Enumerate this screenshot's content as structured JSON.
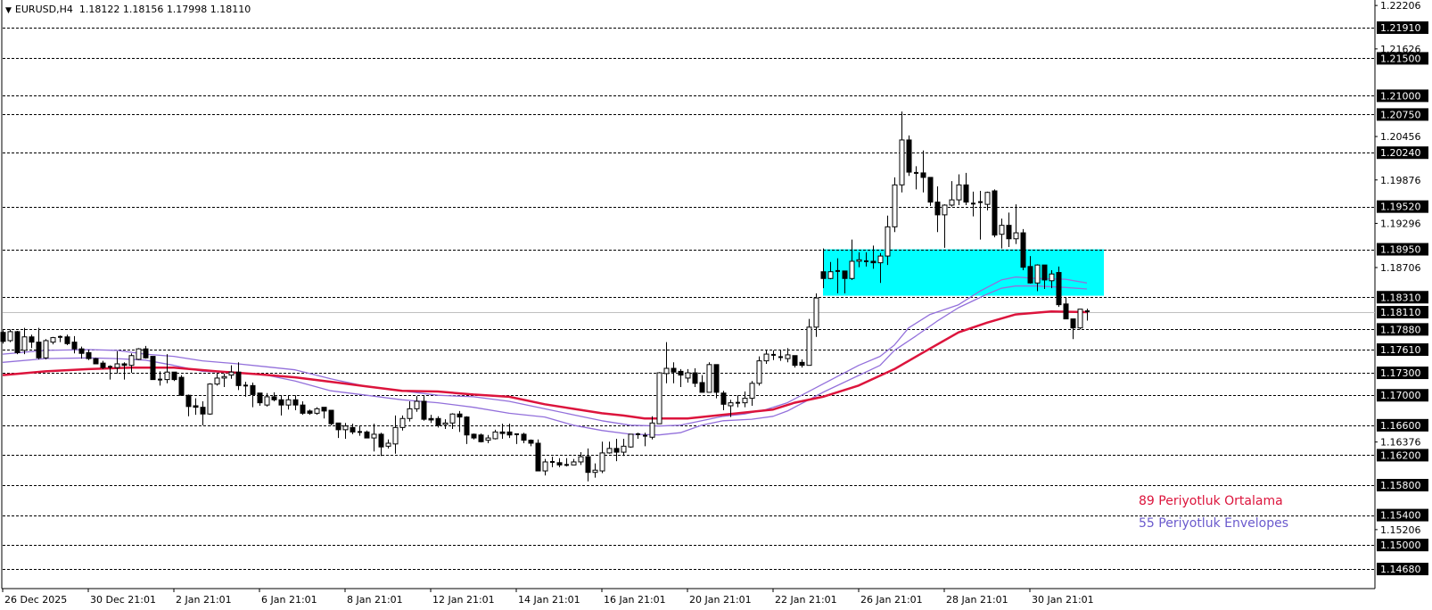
{
  "header": {
    "symbol": "EURUSD,H4",
    "ohlc": "1.18122 1.18156 1.17998 1.18110",
    "menu_icon": "triangle-down-icon"
  },
  "chart_data": {
    "type": "candlestick",
    "symbol": "EURUSD",
    "timeframe": "H4",
    "ylim": [
      1.1461,
      1.2228
    ],
    "grid": false,
    "colors": {
      "bull_body": "#ffffff",
      "bear_body": "#000000",
      "wick": "#000000",
      "ma": "#dc143c",
      "envelope": "#9370db",
      "zone": "#00ffff",
      "bid_line": "#c0c0c0"
    },
    "x_tick_labels": [
      "26 Dec 2025",
      "30 Dec 21:01",
      "2 Jan 21:01",
      "6 Jan 21:01",
      "8 Jan 21:01",
      "12 Jan 21:01",
      "14 Jan 21:01",
      "16 Jan 21:01",
      "20 Jan 21:01",
      "22 Jan 21:01",
      "26 Jan 21:01",
      "28 Jan 21:01",
      "30 Jan 21:01"
    ],
    "x_tick_every_bars": 12,
    "y_tick_labels": [
      "1.22206",
      "1.21626",
      "1.20456",
      "1.19876",
      "1.19296",
      "1.18706",
      "1.16376",
      "1.15206"
    ],
    "levels": [
      "1.21910",
      "1.21500",
      "1.21000",
      "1.20750",
      "1.20240",
      "1.19520",
      "1.18950",
      "1.18310",
      "1.17880",
      "1.17610",
      "1.17300",
      "1.17000",
      "1.16600",
      "1.16200",
      "1.15800",
      "1.15400",
      "1.15000",
      "1.14680"
    ],
    "bid": "1.18110",
    "zone": {
      "top": 1.1895,
      "bottom": 1.1833,
      "from_bar": 115
    },
    "legend": [
      {
        "label": "89 Periyotluk Ortalama",
        "color": "#dc143c"
      },
      {
        "label": "55 Periyotluk Envelopes",
        "color": "#6a5acd"
      }
    ],
    "candles_ohlc": [
      [
        1.1784,
        1.1787,
        1.1769,
        1.1772
      ],
      [
        1.1773,
        1.1788,
        1.1771,
        1.1785
      ],
      [
        1.1785,
        1.1786,
        1.1755,
        1.1757
      ],
      [
        1.176,
        1.179,
        1.1755,
        1.1778
      ],
      [
        1.1778,
        1.1781,
        1.1763,
        1.1771
      ],
      [
        1.1771,
        1.179,
        1.1748,
        1.175
      ],
      [
        1.175,
        1.1775,
        1.1748,
        1.1773
      ],
      [
        1.1771,
        1.1778,
        1.1768,
        1.1777
      ],
      [
        1.1777,
        1.178,
        1.1771,
        1.1778
      ],
      [
        1.1778,
        1.1781,
        1.1767,
        1.1769
      ],
      [
        1.1771,
        1.1779,
        1.1756,
        1.1762
      ],
      [
        1.1762,
        1.1765,
        1.1749,
        1.1756
      ],
      [
        1.1757,
        1.1761,
        1.1747,
        1.1749
      ],
      [
        1.1749,
        1.175,
        1.1742,
        1.1742
      ],
      [
        1.1743,
        1.1746,
        1.1735,
        1.1737
      ],
      [
        1.1738,
        1.174,
        1.1721,
        1.1738
      ],
      [
        1.1737,
        1.1759,
        1.1729,
        1.1742
      ],
      [
        1.1742,
        1.1744,
        1.1721,
        1.174
      ],
      [
        1.174,
        1.1756,
        1.173,
        1.1753
      ],
      [
        1.1748,
        1.1763,
        1.1747,
        1.1762
      ],
      [
        1.1762,
        1.1766,
        1.1749,
        1.175
      ],
      [
        1.1752,
        1.1752,
        1.1721,
        1.1721
      ],
      [
        1.1721,
        1.1732,
        1.1713,
        1.1721
      ],
      [
        1.1721,
        1.1755,
        1.1716,
        1.1731
      ],
      [
        1.1731,
        1.1731,
        1.1719,
        1.1721
      ],
      [
        1.1724,
        1.1727,
        1.17,
        1.17
      ],
      [
        1.17,
        1.1701,
        1.1672,
        1.1685
      ],
      [
        1.1686,
        1.1696,
        1.1674,
        1.1684
      ],
      [
        1.1684,
        1.1692,
        1.166,
        1.1675
      ],
      [
        1.1675,
        1.1716,
        1.1674,
        1.1715
      ],
      [
        1.1715,
        1.173,
        1.1713,
        1.1723
      ],
      [
        1.1723,
        1.1729,
        1.1711,
        1.1725
      ],
      [
        1.1727,
        1.174,
        1.1722,
        1.1731
      ],
      [
        1.1731,
        1.1744,
        1.1707,
        1.1713
      ],
      [
        1.1713,
        1.1718,
        1.1698,
        1.1713
      ],
      [
        1.1713,
        1.1717,
        1.1684,
        1.1701
      ],
      [
        1.1703,
        1.1703,
        1.1686,
        1.169
      ],
      [
        1.1687,
        1.1703,
        1.1685,
        1.1698
      ],
      [
        1.1698,
        1.1704,
        1.1692,
        1.1694
      ],
      [
        1.1694,
        1.17,
        1.1673,
        1.1687
      ],
      [
        1.1687,
        1.17,
        1.1681,
        1.1694
      ],
      [
        1.1694,
        1.17,
        1.168,
        1.1687
      ],
      [
        1.1687,
        1.1692,
        1.1674,
        1.1676
      ],
      [
        1.1679,
        1.1681,
        1.1674,
        1.1676
      ],
      [
        1.1676,
        1.1684,
        1.1674,
        1.1682
      ],
      [
        1.1684,
        1.1684,
        1.1669,
        1.1679
      ],
      [
        1.168,
        1.168,
        1.166,
        1.1662
      ],
      [
        1.1663,
        1.1663,
        1.1643,
        1.1654
      ],
      [
        1.1654,
        1.1663,
        1.1642,
        1.1659
      ],
      [
        1.1657,
        1.1662,
        1.1648,
        1.1651
      ],
      [
        1.1651,
        1.166,
        1.1646,
        1.1651
      ],
      [
        1.1651,
        1.1653,
        1.1643,
        1.1643
      ],
      [
        1.1643,
        1.1662,
        1.1625,
        1.1648
      ],
      [
        1.1648,
        1.165,
        1.1619,
        1.1631
      ],
      [
        1.1632,
        1.1641,
        1.1629,
        1.1636
      ],
      [
        1.1635,
        1.1673,
        1.1622,
        1.1657
      ],
      [
        1.1657,
        1.1673,
        1.1653,
        1.1669
      ],
      [
        1.1669,
        1.1692,
        1.1665,
        1.1682
      ],
      [
        1.1682,
        1.1699,
        1.1678,
        1.1692
      ],
      [
        1.1692,
        1.1699,
        1.1666,
        1.1668
      ],
      [
        1.1669,
        1.1674,
        1.1663,
        1.1667
      ],
      [
        1.1669,
        1.1672,
        1.1657,
        1.166
      ],
      [
        1.1661,
        1.1668,
        1.1655,
        1.1663
      ],
      [
        1.1663,
        1.1676,
        1.1655,
        1.1675
      ],
      [
        1.1675,
        1.1679,
        1.1651,
        1.1671
      ],
      [
        1.1671,
        1.1672,
        1.1635,
        1.1647
      ],
      [
        1.1648,
        1.1649,
        1.1641,
        1.1643
      ],
      [
        1.1647,
        1.1649,
        1.1637,
        1.1638
      ],
      [
        1.164,
        1.1647,
        1.1636,
        1.1643
      ],
      [
        1.1642,
        1.1654,
        1.1641,
        1.1651
      ],
      [
        1.1651,
        1.1662,
        1.1642,
        1.1649
      ],
      [
        1.1651,
        1.1662,
        1.1643,
        1.1647
      ],
      [
        1.1648,
        1.1648,
        1.1635,
        1.1647
      ],
      [
        1.1648,
        1.165,
        1.1636,
        1.164
      ],
      [
        1.164,
        1.1641,
        1.1632,
        1.1636
      ],
      [
        1.1636,
        1.1641,
        1.1599,
        1.1599
      ],
      [
        1.1599,
        1.1615,
        1.1593,
        1.1611
      ],
      [
        1.1611,
        1.1618,
        1.1604,
        1.1611
      ],
      [
        1.161,
        1.1616,
        1.1604,
        1.1607
      ],
      [
        1.1607,
        1.1616,
        1.1605,
        1.1607
      ],
      [
        1.1607,
        1.1615,
        1.1607,
        1.1611
      ],
      [
        1.1611,
        1.1624,
        1.1607,
        1.1618
      ],
      [
        1.1618,
        1.1629,
        1.1585,
        1.1597
      ],
      [
        1.1597,
        1.1609,
        1.159,
        1.16
      ],
      [
        1.1599,
        1.1638,
        1.1596,
        1.1623
      ],
      [
        1.1623,
        1.1638,
        1.1622,
        1.1629
      ],
      [
        1.1629,
        1.1642,
        1.1612,
        1.1624
      ],
      [
        1.1624,
        1.1642,
        1.1619,
        1.1632
      ],
      [
        1.1631,
        1.1648,
        1.163,
        1.1648
      ],
      [
        1.1648,
        1.165,
        1.1642,
        1.1648
      ],
      [
        1.1646,
        1.165,
        1.1632,
        1.1646
      ],
      [
        1.1644,
        1.1672,
        1.1641,
        1.1663
      ],
      [
        1.1662,
        1.1731,
        1.1662,
        1.173
      ],
      [
        1.1729,
        1.1771,
        1.1716,
        1.1736
      ],
      [
        1.1736,
        1.1744,
        1.1716,
        1.1731
      ],
      [
        1.1732,
        1.1735,
        1.1711,
        1.1727
      ],
      [
        1.1723,
        1.1735,
        1.1717,
        1.173
      ],
      [
        1.173,
        1.1736,
        1.1711,
        1.1716
      ],
      [
        1.1717,
        1.1727,
        1.1704,
        1.1704
      ],
      [
        1.1704,
        1.1744,
        1.1704,
        1.1741
      ],
      [
        1.1741,
        1.1741,
        1.1696,
        1.1704
      ],
      [
        1.1703,
        1.1706,
        1.168,
        1.1688
      ],
      [
        1.1686,
        1.1694,
        1.1671,
        1.169
      ],
      [
        1.169,
        1.17,
        1.1684,
        1.169
      ],
      [
        1.169,
        1.1705,
        1.1684,
        1.1696
      ],
      [
        1.1696,
        1.1719,
        1.1686,
        1.1716
      ],
      [
        1.1716,
        1.1752,
        1.1713,
        1.1746
      ],
      [
        1.1746,
        1.176,
        1.1742,
        1.1755
      ],
      [
        1.1754,
        1.176,
        1.1747,
        1.1753
      ],
      [
        1.175,
        1.176,
        1.1746,
        1.1751
      ],
      [
        1.1749,
        1.1763,
        1.1744,
        1.1754
      ],
      [
        1.1753,
        1.1753,
        1.1737,
        1.174
      ],
      [
        1.1744,
        1.1748,
        1.1737,
        1.174
      ],
      [
        1.174,
        1.1802,
        1.174,
        1.1791
      ],
      [
        1.1791,
        1.1836,
        1.1778,
        1.183
      ],
      [
        1.1865,
        1.1896,
        1.1843,
        1.1856
      ],
      [
        1.1856,
        1.1878,
        1.1855,
        1.1865
      ],
      [
        1.1866,
        1.1883,
        1.1836,
        1.1866
      ],
      [
        1.1866,
        1.1866,
        1.1836,
        1.1856
      ],
      [
        1.1856,
        1.1908,
        1.1854,
        1.1879
      ],
      [
        1.1879,
        1.1891,
        1.1871,
        1.1881
      ],
      [
        1.1879,
        1.1891,
        1.1872,
        1.1879
      ],
      [
        1.1879,
        1.19,
        1.1869,
        1.1877
      ],
      [
        1.1877,
        1.189,
        1.185,
        1.1886
      ],
      [
        1.1886,
        1.194,
        1.1874,
        1.1925
      ],
      [
        1.1925,
        1.1991,
        1.1918,
        1.1981
      ],
      [
        1.1981,
        1.2079,
        1.1971,
        1.2041
      ],
      [
        1.2041,
        1.2047,
        1.1993,
        1.1998
      ],
      [
        1.1997,
        1.2006,
        1.1975,
        1.1997
      ],
      [
        1.1997,
        1.2027,
        1.1971,
        1.1991
      ],
      [
        1.1991,
        1.1991,
        1.1953,
        1.1958
      ],
      [
        1.1958,
        1.1979,
        1.1918,
        1.1941
      ],
      [
        1.1941,
        1.1955,
        1.1897,
        1.1954
      ],
      [
        1.1954,
        1.1986,
        1.1952,
        1.1961
      ],
      [
        1.1961,
        1.1995,
        1.1954,
        1.1981
      ],
      [
        1.1981,
        1.1997,
        1.1954,
        1.1958
      ],
      [
        1.1956,
        1.1972,
        1.1939,
        1.1956
      ],
      [
        1.1958,
        1.1973,
        1.1908,
        1.1958
      ],
      [
        1.1955,
        1.1972,
        1.1947,
        1.1971
      ],
      [
        1.1973,
        1.1975,
        1.1911,
        1.1914
      ],
      [
        1.1915,
        1.1936,
        1.1896,
        1.1927
      ],
      [
        1.1927,
        1.1944,
        1.1898,
        1.1909
      ],
      [
        1.1909,
        1.1955,
        1.1902,
        1.1917
      ],
      [
        1.1917,
        1.1922,
        1.1867,
        1.1871
      ],
      [
        1.1872,
        1.1886,
        1.1849,
        1.185
      ],
      [
        1.185,
        1.1875,
        1.1839,
        1.1874
      ],
      [
        1.1874,
        1.1874,
        1.1842,
        1.1854
      ],
      [
        1.1853,
        1.1867,
        1.1843,
        1.1862
      ],
      [
        1.1864,
        1.1872,
        1.1818,
        1.1821
      ],
      [
        1.1822,
        1.1831,
        1.1802,
        1.1802
      ],
      [
        1.1802,
        1.1802,
        1.1775,
        1.179
      ],
      [
        1.179,
        1.1815,
        1.1788,
        1.1815
      ],
      [
        1.18122,
        1.18156,
        1.17998,
        1.1811
      ]
    ],
    "ma89": [
      [
        0,
        1.1727
      ],
      [
        6,
        1.1732
      ],
      [
        12,
        1.1735
      ],
      [
        18,
        1.1737
      ],
      [
        24,
        1.1737
      ],
      [
        30,
        1.1732
      ],
      [
        36,
        1.1728
      ],
      [
        41,
        1.1724
      ],
      [
        46,
        1.1718
      ],
      [
        51,
        1.1712
      ],
      [
        56,
        1.1706
      ],
      [
        61,
        1.1705
      ],
      [
        66,
        1.1701
      ],
      [
        71,
        1.1698
      ],
      [
        76,
        1.1688
      ],
      [
        80,
        1.1682
      ],
      [
        84,
        1.1676
      ],
      [
        87,
        1.1673
      ],
      [
        90,
        1.1669
      ],
      [
        96,
        1.1669
      ],
      [
        99,
        1.1672
      ],
      [
        102,
        1.1675
      ],
      [
        105,
        1.1678
      ],
      [
        108,
        1.1681
      ],
      [
        111,
        1.169
      ],
      [
        115,
        1.1698
      ],
      [
        120,
        1.1713
      ],
      [
        125,
        1.1735
      ],
      [
        129,
        1.1757
      ],
      [
        134,
        1.1784
      ],
      [
        138,
        1.1797
      ],
      [
        142,
        1.1808
      ],
      [
        147,
        1.1812
      ],
      [
        152,
        1.1811
      ]
    ],
    "envelope_upper": [
      [
        0,
        1.1755
      ],
      [
        6,
        1.176
      ],
      [
        12,
        1.1761
      ],
      [
        16,
        1.176
      ],
      [
        20,
        1.1755
      ],
      [
        24,
        1.1752
      ],
      [
        28,
        1.1746
      ],
      [
        33,
        1.1742
      ],
      [
        37,
        1.1738
      ],
      [
        41,
        1.1734
      ],
      [
        46,
        1.1722
      ],
      [
        51,
        1.1712
      ],
      [
        56,
        1.1706
      ],
      [
        61,
        1.17
      ],
      [
        66,
        1.1698
      ],
      [
        71,
        1.1692
      ],
      [
        76,
        1.1682
      ],
      [
        80,
        1.1674
      ],
      [
        84,
        1.1666
      ],
      [
        88,
        1.166
      ],
      [
        92,
        1.1659
      ],
      [
        95,
        1.166
      ],
      [
        98,
        1.1666
      ],
      [
        101,
        1.1672
      ],
      [
        104,
        1.1675
      ],
      [
        107,
        1.1681
      ],
      [
        110,
        1.169
      ],
      [
        115,
        1.1715
      ],
      [
        120,
        1.174
      ],
      [
        123,
        1.1752
      ],
      [
        125,
        1.1767
      ],
      [
        127,
        1.179
      ],
      [
        130,
        1.1808
      ],
      [
        134,
        1.1821
      ],
      [
        137,
        1.1839
      ],
      [
        140,
        1.1854
      ],
      [
        142,
        1.1858
      ],
      [
        145,
        1.1856
      ],
      [
        149,
        1.1855
      ],
      [
        152,
        1.185
      ]
    ],
    "envelope_lower": [
      [
        0,
        1.1744
      ],
      [
        6,
        1.1749
      ],
      [
        12,
        1.175
      ],
      [
        16,
        1.1749
      ],
      [
        20,
        1.1747
      ],
      [
        24,
        1.174
      ],
      [
        28,
        1.1732
      ],
      [
        33,
        1.173
      ],
      [
        37,
        1.1727
      ],
      [
        41,
        1.1719
      ],
      [
        46,
        1.1706
      ],
      [
        51,
        1.17
      ],
      [
        56,
        1.1694
      ],
      [
        61,
        1.169
      ],
      [
        66,
        1.1684
      ],
      [
        71,
        1.1676
      ],
      [
        76,
        1.1671
      ],
      [
        80,
        1.166
      ],
      [
        84,
        1.1653
      ],
      [
        88,
        1.1648
      ],
      [
        92,
        1.1647
      ],
      [
        95,
        1.165
      ],
      [
        98,
        1.166
      ],
      [
        101,
        1.1666
      ],
      [
        105,
        1.1668
      ],
      [
        108,
        1.1672
      ],
      [
        110,
        1.1679
      ],
      [
        115,
        1.1704
      ],
      [
        123,
        1.174
      ],
      [
        125,
        1.176
      ],
      [
        128,
        1.1779
      ],
      [
        131,
        1.1799
      ],
      [
        134,
        1.1817
      ],
      [
        138,
        1.1835
      ],
      [
        140,
        1.1843
      ],
      [
        142,
        1.1846
      ],
      [
        145,
        1.1846
      ],
      [
        149,
        1.1844
      ],
      [
        152,
        1.1842
      ]
    ]
  }
}
